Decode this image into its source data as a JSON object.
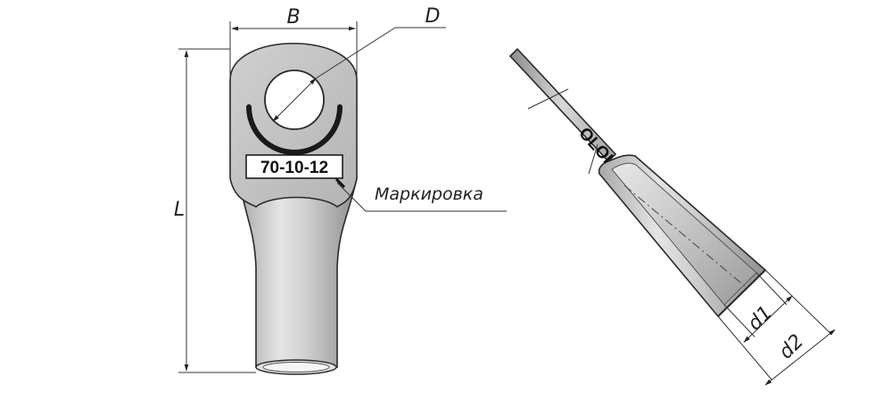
{
  "diagram": {
    "dimensions": {
      "width_label": "B",
      "hole_label": "D",
      "length_label": "L",
      "inner_diameter_label": "d1",
      "outer_diameter_label": "d2"
    },
    "marking_label": "Маркировка",
    "stamp_text": "70-10-12",
    "side_stamp_text": "OLOI",
    "colors": {
      "body_light": "#e6e6e6",
      "body_mid": "#bdbdbd",
      "body_dark": "#8a8a8a",
      "outline": "#2a2a2a"
    }
  }
}
